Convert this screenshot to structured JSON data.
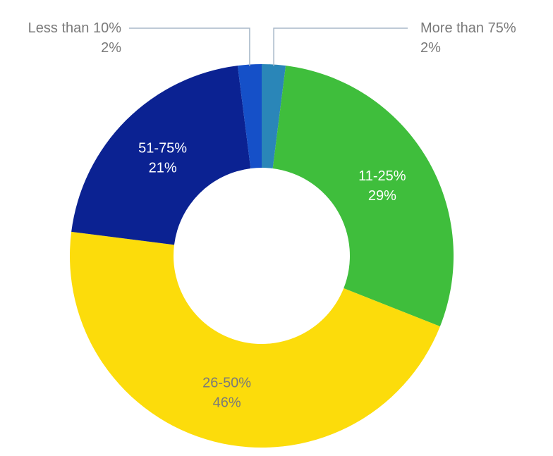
{
  "chart_data": {
    "type": "donut",
    "categories": [
      "More than 75%",
      "11-25%",
      "26-50%",
      "51-75%",
      "Less than 10%"
    ],
    "values": [
      2,
      29,
      46,
      21,
      2
    ],
    "value_labels": [
      "2%",
      "29%",
      "46%",
      "21%",
      "2%"
    ],
    "colors": [
      "#2a86b8",
      "#3fbe3c",
      "#fcdc0b",
      "#0b2292",
      "#1550c8"
    ]
  }
}
